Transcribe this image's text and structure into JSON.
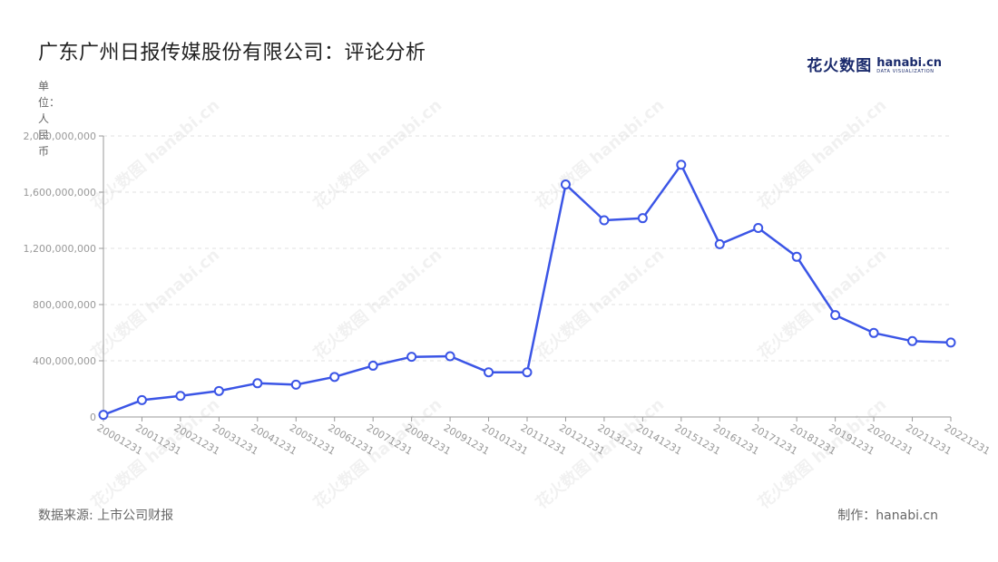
{
  "title": "广东广州日报传媒股份有限公司：评论分析",
  "unit_label": "单位：人民币",
  "logo": {
    "cn": "花火数图",
    "en": "hanabi.cn",
    "en_sub": "DATA VISUALIZATION"
  },
  "footer": {
    "source": "数据来源: 上市公司财报",
    "credit": "制作：hanabi.cn"
  },
  "watermark_text": "花火数图 hanabi.cn",
  "colors": {
    "line": "#3b55e6",
    "grid": "#e0e0e0",
    "axis": "#999999",
    "marker_fill": "#ffffff"
  },
  "chart_data": {
    "type": "line",
    "title": "广东广州日报传媒股份有限公司：评论分析",
    "ylabel": "单位：人民币",
    "xlabel": "",
    "categories": [
      "20001231",
      "20011231",
      "20021231",
      "20031231",
      "20041231",
      "20051231",
      "20061231",
      "20071231",
      "20081231",
      "20091231",
      "20101231",
      "20111231",
      "20121231",
      "20131231",
      "20141231",
      "20151231",
      "20161231",
      "20171231",
      "20181231",
      "20191231",
      "20201231",
      "20211231",
      "20221231"
    ],
    "series": [
      {
        "values": [
          15000000,
          120000000,
          150000000,
          185000000,
          240000000,
          230000000,
          285000000,
          365000000,
          428000000,
          432000000,
          318000000,
          318000000,
          1655000000,
          1400000000,
          1415000000,
          1795000000,
          1230000000,
          1345000000,
          1140000000,
          725000000,
          598000000,
          540000000,
          530000000
        ]
      }
    ],
    "ylim": [
      0,
      2000000000
    ],
    "yticks": [
      0,
      400000000,
      800000000,
      1200000000,
      1600000000,
      2000000000
    ],
    "ytick_labels": [
      "0",
      "400,000,000",
      "800,000,000",
      "1,200,000,000",
      "1,600,000,000",
      "2,000,000,000"
    ],
    "grid": true
  }
}
